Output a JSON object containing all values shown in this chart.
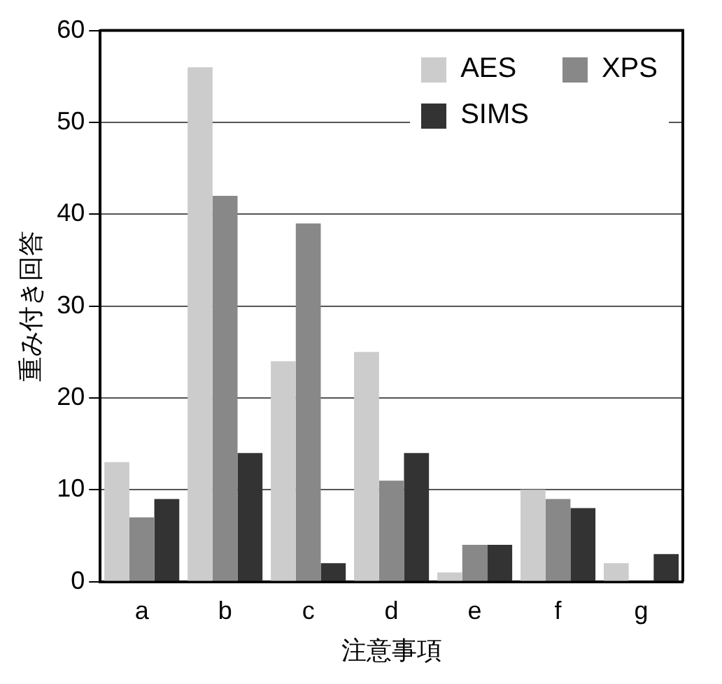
{
  "chart_data": {
    "type": "bar",
    "xlabel": "注意事項",
    "ylabel": "重み付き回答",
    "categories": [
      "a",
      "b",
      "c",
      "d",
      "e",
      "f",
      "g"
    ],
    "series": [
      {
        "name": "AES",
        "color": "#cccccc",
        "values": [
          13,
          56,
          24,
          25,
          1,
          10,
          2
        ]
      },
      {
        "name": "XPS",
        "color": "#888888",
        "values": [
          7,
          42,
          39,
          11,
          4,
          9,
          0
        ]
      },
      {
        "name": "SIMS",
        "color": "#333333",
        "values": [
          9,
          14,
          2,
          14,
          4,
          8,
          3
        ]
      }
    ],
    "ylim": [
      0,
      60
    ],
    "yticks": [
      0,
      10,
      20,
      30,
      40,
      50,
      60
    ],
    "grid": "y",
    "legend": "top right"
  }
}
